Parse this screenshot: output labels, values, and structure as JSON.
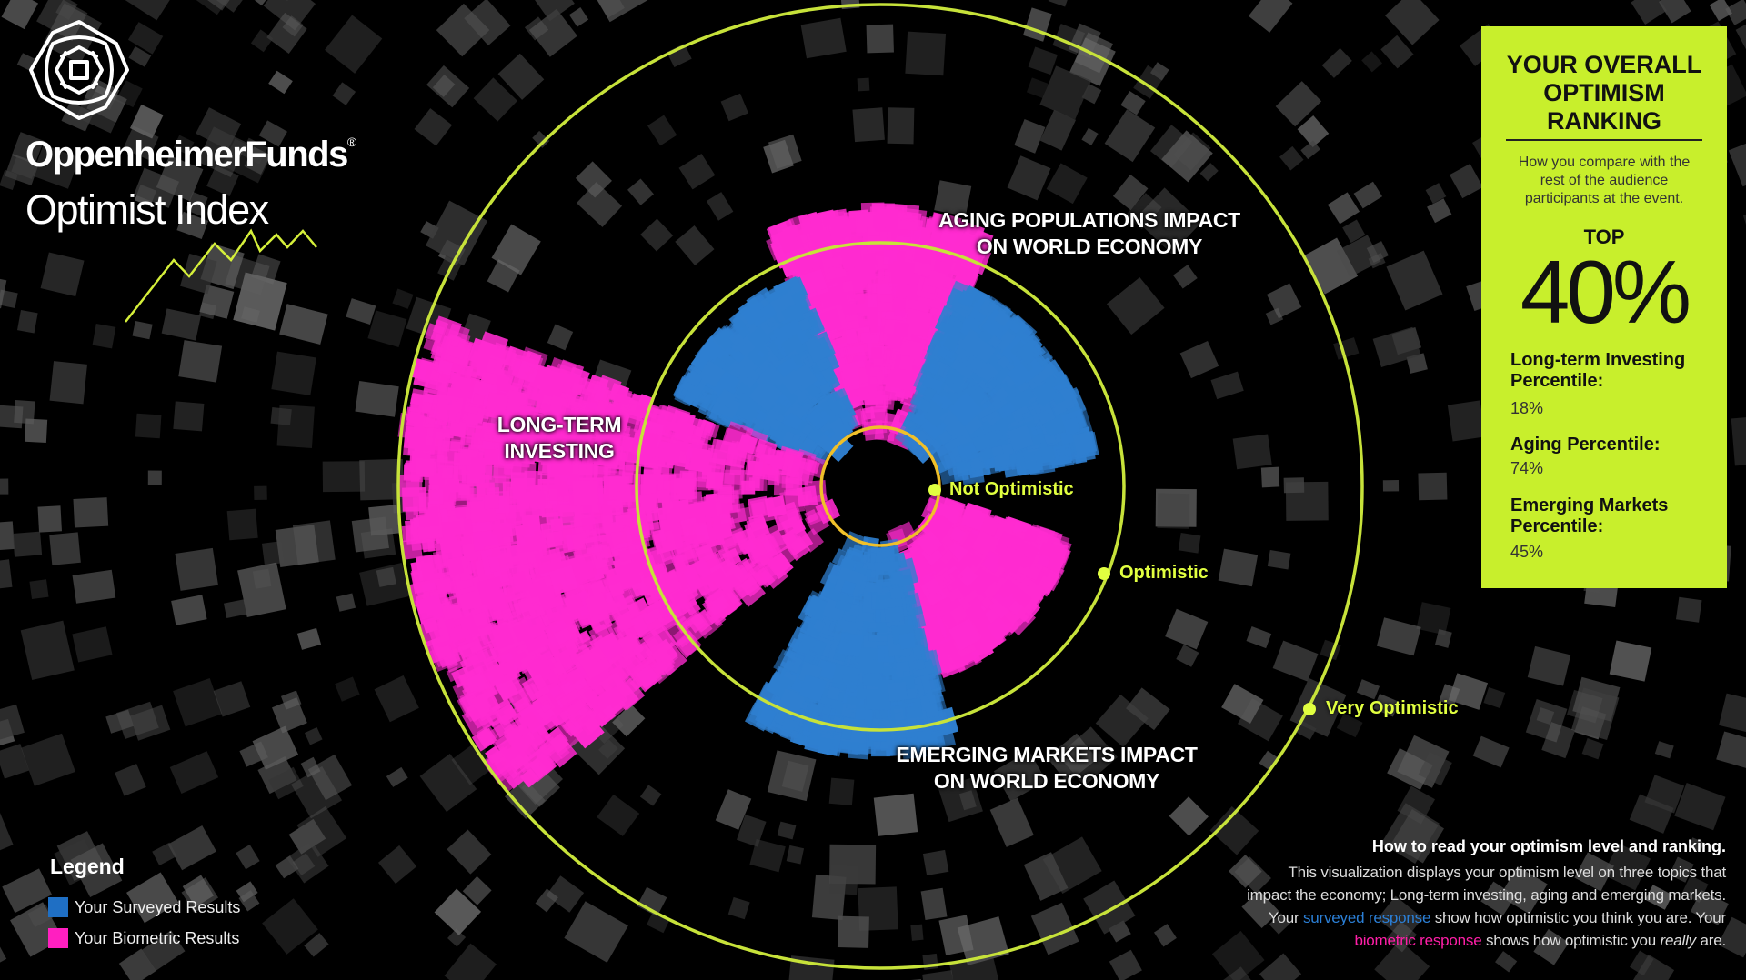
{
  "brand": {
    "name": "OppenheimerFunds",
    "registered_mark": "®",
    "product": "Optimist Index"
  },
  "topics": {
    "aging": [
      "AGING POPULATIONS IMPACT",
      "ON WORLD ECONOMY"
    ],
    "long_term": [
      "LONG-TERM",
      "INVESTING"
    ],
    "emerging": [
      "EMERGING MARKETS IMPACT",
      "ON WORLD ECONOMY"
    ]
  },
  "levels": {
    "inner": "Not Optimistic",
    "middle": "Optimistic",
    "outer": "Very Optimistic"
  },
  "ranking_panel": {
    "title": [
      "YOUR OVERALL",
      "OPTIMISM",
      "RANKING"
    ],
    "description": [
      "How you compare with the",
      "rest of the audience",
      "participants at the event."
    ],
    "top_label": "TOP",
    "top_value": "40%",
    "percentiles": [
      {
        "label": [
          "Long-term Investing",
          "Percentile:"
        ],
        "value": "18%"
      },
      {
        "label": [
          "Aging Percentile:"
        ],
        "value": "74%"
      },
      {
        "label": [
          "Emerging Markets",
          "Percentile:"
        ],
        "value": "45%"
      }
    ]
  },
  "legend": {
    "title": "Legend",
    "items": [
      {
        "label": "Your Surveyed Results",
        "color": "#1f6fc4"
      },
      {
        "label": "Your Biometric Results",
        "color": "#ff1fc0"
      }
    ]
  },
  "howto": {
    "title": "How to read your optimism level and ranking.",
    "line1": "This visualization displays your optimism level on three topics that",
    "line2": "impact the economy; Long-term investing, aging and emerging markets.",
    "line3_a": "Your ",
    "line3_surveyed": "surveyed response",
    "line3_b": " show how optimistic you think you are. Your",
    "line4_biometric": "biometric response",
    "line4_b": " shows how optimistic you ",
    "line4_really": "really",
    "line4_c": " are."
  },
  "colors": {
    "ring": "#c7e23a",
    "inner_ring": "#f0c02a",
    "surveyed": "#2f7fd0",
    "biometric": "#ff2bd0",
    "panel": "#c8ef2c"
  }
}
